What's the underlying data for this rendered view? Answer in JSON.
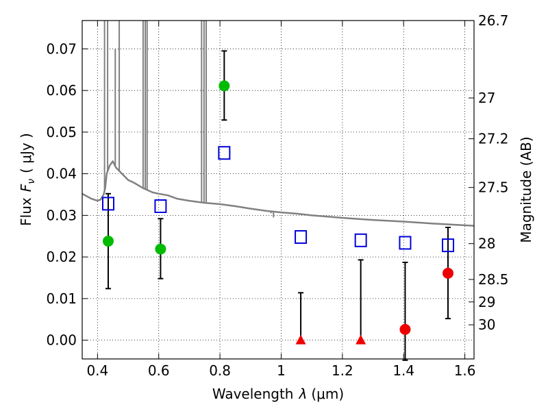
{
  "chart_data": {
    "type": "scatter",
    "xlabel_text": "Wavelength",
    "xlabel_symbol": "λ",
    "xlabel_unit": "(μm)",
    "ylabel_text": "Flux",
    "ylabel_symbol": "F",
    "ylabel_subscript": "ν",
    "ylabel_unit": "( μJy )",
    "y2label": "Magnitude (AB)",
    "xlim": [
      0.35,
      1.63
    ],
    "ylim": [
      -0.0045,
      0.0768
    ],
    "x_ticks": [
      0.4,
      0.6,
      0.8,
      1.0,
      1.2,
      1.4,
      1.6
    ],
    "x_tick_labels": [
      "0.4",
      "0.6",
      "0.8",
      "1",
      "1.2",
      "1.4",
      "1.6"
    ],
    "y_ticks": [
      0.0,
      0.01,
      0.02,
      0.03,
      0.04,
      0.05,
      0.06,
      0.07
    ],
    "y_tick_labels": [
      "0.00",
      "0.01",
      "0.02",
      "0.03",
      "0.04",
      "0.05",
      "0.06",
      "0.07"
    ],
    "y2_ticks": [
      {
        "label": "26.7",
        "flux": 0.0768
      },
      {
        "label": "27",
        "flux": 0.0582
      },
      {
        "label": "27.2",
        "flux": 0.0484
      },
      {
        "label": "27.5",
        "flux": 0.0367
      },
      {
        "label": "28",
        "flux": 0.0232
      },
      {
        "label": "28.5",
        "flux": 0.0146
      },
      {
        "label": "29",
        "flux": 0.0092
      },
      {
        "label": "30",
        "flux": 0.0037
      }
    ],
    "grid": true,
    "colors": {
      "detection": "#00bb00",
      "nondetection": "#ee0000",
      "model_photometry": "#0000dd",
      "sed_model": "#808080",
      "errorbar": "#000000"
    },
    "series": [
      {
        "kind": "detection",
        "x": [
          0.435,
          0.606,
          0.814
        ],
        "y": [
          0.0238,
          0.0219,
          0.0611
        ],
        "yerr_low": [
          0.0114,
          0.0071,
          0.0082
        ],
        "yerr_high": [
          0.0114,
          0.0073,
          0.0084
        ]
      },
      {
        "kind": "nondetection_circle",
        "x": [
          1.405,
          1.545
        ],
        "y": [
          0.0026,
          0.0161
        ],
        "yerr_low": [
          0.0074,
          0.0109
        ],
        "yerr_high": [
          0.0161,
          0.011
        ]
      },
      {
        "kind": "nondetection_triangle",
        "x": [
          1.064,
          1.26
        ],
        "y": [
          0.0,
          0.0
        ],
        "yerr_low": [
          0.0,
          0.0
        ],
        "yerr_high": [
          0.0114,
          0.0193
        ]
      },
      {
        "kind": "model_photometry",
        "x": [
          0.435,
          0.606,
          0.814,
          1.064,
          1.26,
          1.405,
          1.545
        ],
        "y": [
          0.0328,
          0.0322,
          0.045,
          0.0248,
          0.024,
          0.0234,
          0.0228
        ]
      },
      {
        "kind": "sed_model",
        "x": [
          0.35,
          0.38,
          0.4,
          0.41,
          0.42,
          0.425,
          0.43,
          0.44,
          0.45,
          0.46,
          0.48,
          0.5,
          0.52,
          0.55,
          0.58,
          0.6,
          0.63,
          0.66,
          0.7,
          0.75,
          0.8,
          0.85,
          0.9,
          0.95,
          1.0,
          1.05,
          1.1,
          1.2,
          1.3,
          1.4,
          1.5,
          1.63
        ],
        "y": [
          0.0352,
          0.034,
          0.0335,
          0.0338,
          0.035,
          0.0365,
          0.04,
          0.042,
          0.043,
          0.0415,
          0.04,
          0.0385,
          0.0378,
          0.0365,
          0.0355,
          0.0352,
          0.0348,
          0.034,
          0.0335,
          0.033,
          0.0327,
          0.0322,
          0.0316,
          0.0311,
          0.0307,
          0.0304,
          0.03,
          0.0294,
          0.0289,
          0.0285,
          0.028,
          0.0275
        ]
      }
    ],
    "sed_spikes": [
      {
        "x": 0.423,
        "y": 0.0768
      },
      {
        "x": 0.433,
        "y": 0.0768
      },
      {
        "x": 0.458,
        "y": 0.07
      },
      {
        "x": 0.471,
        "y": 0.0768
      },
      {
        "x": 0.549,
        "y": 0.0768
      },
      {
        "x": 0.556,
        "y": 0.0768
      },
      {
        "x": 0.562,
        "y": 0.0768
      },
      {
        "x": 0.74,
        "y": 0.0768
      },
      {
        "x": 0.748,
        "y": 0.0768
      },
      {
        "x": 0.755,
        "y": 0.0768
      },
      {
        "x": 0.967,
        "y": 0.0305
      },
      {
        "x": 0.975,
        "y": 0.0295
      }
    ]
  }
}
